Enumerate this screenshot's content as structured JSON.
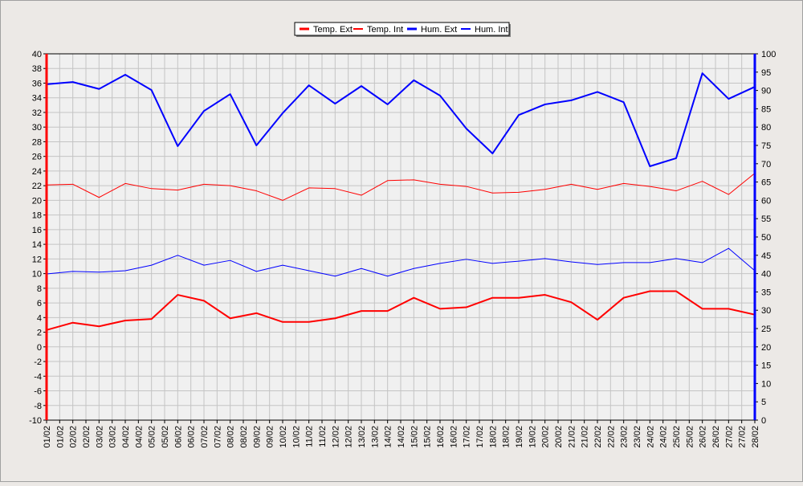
{
  "chart_data": {
    "type": "line",
    "legend": "top",
    "grid": true,
    "categories": [
      "01/02",
      "02/02",
      "03/02",
      "04/02",
      "05/02",
      "06/02",
      "07/02",
      "08/02",
      "09/02",
      "10/02",
      "11/02",
      "12/02",
      "13/02",
      "14/02",
      "15/02",
      "16/02",
      "17/02",
      "18/02",
      "19/02",
      "20/02",
      "21/02",
      "22/02",
      "23/02",
      "24/02",
      "25/02",
      "26/02",
      "27/02",
      "28/02"
    ],
    "xticks": [
      {
        "value": 0,
        "label": "01/02"
      },
      {
        "value": 0.5,
        "label": "01/02"
      },
      {
        "value": 1,
        "label": "02/02"
      },
      {
        "value": 1.5,
        "label": "02/02"
      },
      {
        "value": 2,
        "label": "03/02"
      },
      {
        "value": 2.5,
        "label": "03/02"
      },
      {
        "value": 3,
        "label": "04/02"
      },
      {
        "value": 3.5,
        "label": "04/02"
      },
      {
        "value": 4,
        "label": "05/02"
      },
      {
        "value": 4.5,
        "label": "05/02"
      },
      {
        "value": 5,
        "label": "06/02"
      },
      {
        "value": 5.5,
        "label": "06/02"
      },
      {
        "value": 6,
        "label": "07/02"
      },
      {
        "value": 6.5,
        "label": "07/02"
      },
      {
        "value": 7,
        "label": "08/02"
      },
      {
        "value": 7.5,
        "label": "08/02"
      },
      {
        "value": 8,
        "label": "09/02"
      },
      {
        "value": 8.5,
        "label": "09/02"
      },
      {
        "value": 9,
        "label": "10/02"
      },
      {
        "value": 9.5,
        "label": "10/02"
      },
      {
        "value": 10,
        "label": "11/02"
      },
      {
        "value": 10.5,
        "label": "11/02"
      },
      {
        "value": 11,
        "label": "12/02"
      },
      {
        "value": 11.5,
        "label": "12/02"
      },
      {
        "value": 12,
        "label": "13/02"
      },
      {
        "value": 12.5,
        "label": "13/02"
      },
      {
        "value": 13,
        "label": "14/02"
      },
      {
        "value": 13.5,
        "label": "14/02"
      },
      {
        "value": 14,
        "label": "15/02"
      },
      {
        "value": 14.5,
        "label": "15/02"
      },
      {
        "value": 15,
        "label": "16/02"
      },
      {
        "value": 15.5,
        "label": "16/02"
      },
      {
        "value": 16,
        "label": "17/02"
      },
      {
        "value": 16.5,
        "label": "17/02"
      },
      {
        "value": 17,
        "label": "18/02"
      },
      {
        "value": 17.5,
        "label": "18/02"
      },
      {
        "value": 18,
        "label": "19/02"
      },
      {
        "value": 18.5,
        "label": "19/02"
      },
      {
        "value": 19,
        "label": "20/02"
      },
      {
        "value": 19.5,
        "label": "20/02"
      },
      {
        "value": 20,
        "label": "21/02"
      },
      {
        "value": 20.5,
        "label": "21/02"
      },
      {
        "value": 21,
        "label": "22/02"
      },
      {
        "value": 21.5,
        "label": "22/02"
      },
      {
        "value": 22,
        "label": "23/02"
      },
      {
        "value": 22.5,
        "label": "23/02"
      },
      {
        "value": 23,
        "label": "24/02"
      },
      {
        "value": 23.5,
        "label": "24/02"
      },
      {
        "value": 24,
        "label": "25/02"
      },
      {
        "value": 24.5,
        "label": "25/02"
      },
      {
        "value": 25,
        "label": "26/02"
      },
      {
        "value": 25.5,
        "label": "26/02"
      },
      {
        "value": 26,
        "label": "27/02"
      },
      {
        "value": 26.5,
        "label": "27/02"
      },
      {
        "value": 27,
        "label": "28/02"
      }
    ],
    "ylim": [
      -10,
      40
    ],
    "yticks": [
      -10,
      -8,
      -6,
      -4,
      -2,
      0,
      2,
      4,
      6,
      8,
      10,
      12,
      14,
      16,
      18,
      20,
      22,
      24,
      26,
      28,
      30,
      32,
      34,
      36,
      38,
      40
    ],
    "y2lim": [
      0,
      100
    ],
    "y2ticks": [
      0,
      5,
      10,
      15,
      20,
      25,
      30,
      35,
      40,
      45,
      50,
      55,
      60,
      65,
      70,
      75,
      80,
      85,
      90,
      95,
      100
    ],
    "series": [
      {
        "name": "Temp. Ext",
        "color": "#ff0000",
        "line_width": 2,
        "values": [
          2.3,
          3.3,
          2.8,
          3.6,
          3.8,
          7.1,
          6.3,
          3.9,
          4.6,
          3.4,
          3.4,
          3.9,
          4.9,
          4.9,
          6.7,
          5.2,
          5.4,
          6.7,
          6.7,
          7.1,
          6.1,
          3.7,
          6.7,
          7.6,
          7.6,
          5.2,
          5.2,
          4.4
        ]
      },
      {
        "name": "Temp. Int",
        "color": "#ff0000",
        "line_width": 1,
        "values": [
          22.1,
          22.2,
          20.4,
          22.3,
          21.6,
          21.4,
          22.2,
          22.0,
          21.3,
          20.0,
          21.7,
          21.6,
          20.7,
          22.7,
          22.8,
          22.2,
          21.9,
          21.0,
          21.1,
          21.5,
          22.2,
          21.5,
          22.3,
          21.9,
          21.3,
          22.6,
          20.8,
          23.7
        ]
      },
      {
        "name": "Hum. Ext",
        "color": "#0000ff",
        "line_width": 2,
        "axis": "y2",
        "values": [
          91.7,
          92.3,
          90.4,
          94.3,
          90.1,
          74.8,
          84.4,
          89.0,
          75.0,
          83.8,
          91.4,
          86.4,
          91.2,
          86.2,
          92.8,
          88.6,
          79.6,
          72.8,
          83.3,
          86.2,
          87.3,
          89.6,
          86.8,
          69.3,
          71.5,
          94.7,
          87.7,
          91.0
        ]
      },
      {
        "name": "Hum. Int",
        "color": "#0000ff",
        "line_width": 1,
        "axis": "y2",
        "values": [
          39.9,
          40.6,
          40.4,
          40.8,
          42.3,
          45.0,
          42.3,
          43.6,
          40.6,
          42.3,
          40.8,
          39.3,
          41.4,
          39.3,
          41.4,
          42.8,
          43.9,
          42.8,
          43.4,
          44.1,
          43.2,
          42.5,
          43.0,
          43.0,
          44.1,
          43.0,
          46.9,
          40.8
        ]
      }
    ]
  }
}
